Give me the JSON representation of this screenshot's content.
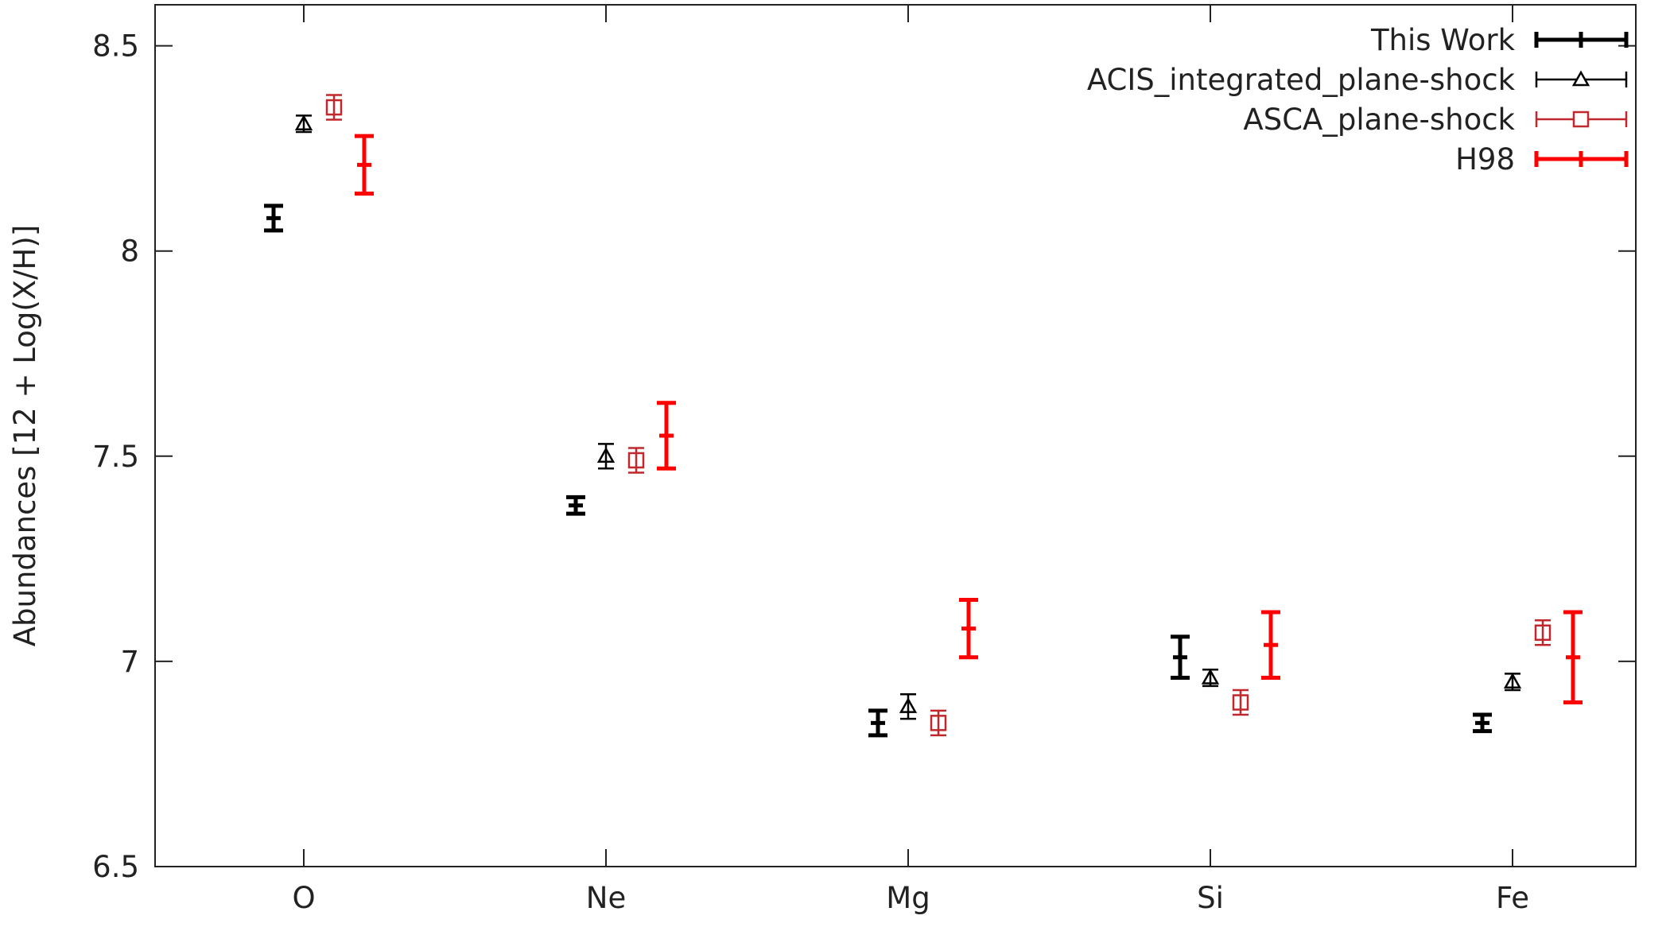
{
  "chart_data": {
    "type": "scatter",
    "title": "",
    "xlabel": "",
    "ylabel": "Abundances [12 + Log(X/H)]",
    "ylim": [
      6.5,
      8.6
    ],
    "yticks": [
      "6.5",
      "7",
      "7.5",
      "8",
      "8.5"
    ],
    "ytick_values": [
      6.5,
      7,
      7.5,
      8,
      8.5
    ],
    "categories": [
      "O",
      "Ne",
      "Mg",
      "Si",
      "Fe"
    ],
    "grid": false,
    "legend_position": "top-right",
    "series": [
      {
        "name": "This Work",
        "color": "#000000",
        "marker": "plus",
        "values": [
          8.08,
          7.38,
          6.85,
          7.01,
          6.85
        ],
        "errors": [
          0.03,
          0.02,
          0.03,
          0.05,
          0.02
        ]
      },
      {
        "name": "ACIS_integrated_plane-shock",
        "color": "#000000",
        "marker": "triangle",
        "values": [
          8.31,
          7.5,
          6.89,
          6.96,
          6.95
        ],
        "errors": [
          0.02,
          0.03,
          0.03,
          0.02,
          0.02
        ]
      },
      {
        "name": "ASCA_plane-shock",
        "color": "#c0282d",
        "marker": "square",
        "values": [
          8.35,
          7.49,
          6.85,
          6.9,
          7.07
        ],
        "errors": [
          0.03,
          0.03,
          0.03,
          0.03,
          0.03
        ]
      },
      {
        "name": "H98",
        "color": "#ff0000",
        "marker": "plus",
        "values": [
          8.21,
          7.55,
          7.08,
          7.04,
          7.01
        ],
        "errors": [
          0.07,
          0.08,
          0.07,
          0.08,
          0.11
        ]
      }
    ]
  }
}
